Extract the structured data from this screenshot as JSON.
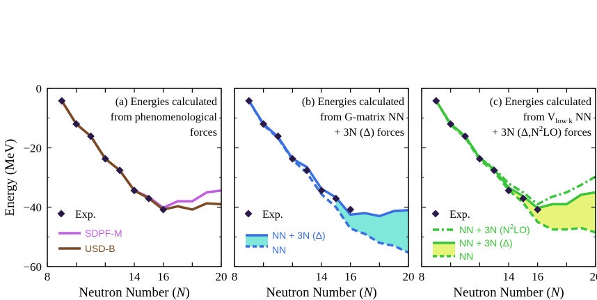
{
  "figure": {
    "ylabel": "Energy (MeV)",
    "xlabel": "Neutron Number (",
    "xlabel_var": "N",
    "xlabel_end": ")"
  },
  "chart_data": [
    {
      "type": "line",
      "panel": "a",
      "title_lines": [
        "(a)  Energies calculated",
        "from phenomenological",
        "forces"
      ],
      "xlim": [
        8,
        20
      ],
      "ylim": [
        -60,
        0
      ],
      "xticks": [
        8,
        14,
        16,
        20
      ],
      "yticks": [
        0,
        -20,
        -40,
        -60
      ],
      "experiment": {
        "name": "Exp.",
        "x": [
          9,
          10,
          11,
          12,
          13,
          14,
          15,
          16
        ],
        "y": [
          -4.2,
          -12.0,
          -16.1,
          -23.7,
          -27.6,
          -34.4,
          -37.1,
          -40.8
        ]
      },
      "series": [
        {
          "name": "SDPF-M",
          "color": "#c060e0",
          "x": [
            9,
            10,
            11,
            12,
            13,
            14,
            15,
            16,
            17,
            18,
            19,
            20
          ],
          "y": [
            -4.2,
            -12.0,
            -16.1,
            -23.7,
            -27.6,
            -34.4,
            -36.6,
            -40.2,
            -38.0,
            -38.0,
            -35.0,
            -34.4
          ]
        },
        {
          "name": "USD-B",
          "color": "#7a4b22",
          "x": [
            9,
            10,
            11,
            12,
            13,
            14,
            15,
            16,
            17,
            18,
            19,
            20
          ],
          "y": [
            -4.2,
            -12.0,
            -16.1,
            -23.7,
            -27.6,
            -34.4,
            -37.0,
            -40.8,
            -39.7,
            -40.8,
            -38.7,
            -39.0
          ]
        }
      ],
      "legend": "bottom-left"
    },
    {
      "type": "line",
      "panel": "b",
      "title_lines": [
        "(b)  Energies calculated",
        "from G-matrix NN",
        "+ 3N (Δ) forces"
      ],
      "xlim": [
        8,
        20
      ],
      "ylim": [
        -60,
        0
      ],
      "xticks": [
        8,
        14,
        16,
        20
      ],
      "yticks": [
        0,
        -20,
        -40,
        -60
      ],
      "experiment": {
        "name": "Exp.",
        "x": [
          9,
          10,
          11,
          12,
          13,
          14,
          15,
          16
        ],
        "y": [
          -4.2,
          -12.0,
          -16.1,
          -23.7,
          -27.6,
          -34.4,
          -37.1,
          -40.8
        ]
      },
      "series": [
        {
          "name": "NN + 3N (Δ)",
          "color": "#3a6fe0",
          "style": "solid",
          "x": [
            9,
            10,
            11,
            12,
            13,
            14,
            15,
            16,
            17,
            18,
            19,
            20
          ],
          "y": [
            -4.2,
            -12.0,
            -16.3,
            -23.7,
            -26.5,
            -33.8,
            -36.7,
            -42.5,
            -42.0,
            -43.0,
            -41.3,
            -41.0
          ]
        },
        {
          "name": "NN",
          "color": "#3a6fe0",
          "style": "dashed",
          "x": [
            9,
            10,
            11,
            12,
            13,
            14,
            15,
            16,
            17,
            18,
            19,
            20
          ],
          "y": [
            -4.2,
            -12.3,
            -16.7,
            -24.0,
            -28.5,
            -35.6,
            -40.0,
            -47.2,
            -49.0,
            -52.0,
            -53.0,
            -55.3
          ]
        }
      ],
      "band": {
        "color": "#7fe8da",
        "from_x": 15
      },
      "legend": "bottom-left"
    },
    {
      "type": "line",
      "panel": "c",
      "title_lines": [
        "(c)  Energies calculated",
        "from  V",
        "low k",
        " NN",
        "+ 3N (Δ,N",
        "2",
        "LO) forces"
      ],
      "xlim": [
        8,
        20
      ],
      "ylim": [
        -60,
        0
      ],
      "xticks": [
        8,
        14,
        16,
        20
      ],
      "yticks": [
        0,
        -20,
        -40,
        -60
      ],
      "experiment": {
        "name": "Exp.",
        "x": [
          9,
          10,
          11,
          12,
          13,
          14,
          15,
          16
        ],
        "y": [
          -4.2,
          -12.0,
          -16.1,
          -23.7,
          -27.6,
          -34.4,
          -37.1,
          -40.8
        ]
      },
      "series": [
        {
          "name": "NN + 3N (N",
          "name_sup": "2",
          "name_end": "LO)",
          "color": "#3cc43c",
          "style": "dashdot",
          "x": [
            9,
            10,
            11,
            12,
            13,
            14,
            15,
            16,
            17,
            18,
            19,
            20
          ],
          "y": [
            -4.2,
            -12.0,
            -16.0,
            -23.4,
            -26.9,
            -32.0,
            -35.0,
            -39.0,
            -36.5,
            -35.0,
            -32.5,
            -29.7
          ]
        },
        {
          "name": "NN + 3N (Δ)",
          "color": "#3cc43c",
          "style": "solid",
          "x": [
            9,
            10,
            11,
            12,
            13,
            14,
            15,
            16,
            17,
            18,
            19,
            20
          ],
          "y": [
            -4.2,
            -12.0,
            -16.1,
            -23.5,
            -27.3,
            -33.4,
            -36.3,
            -40.3,
            -39.0,
            -39.0,
            -35.8,
            -35.0
          ]
        },
        {
          "name": "NN",
          "color": "#3cc43c",
          "style": "dashed",
          "x": [
            9,
            10,
            11,
            12,
            13,
            14,
            15,
            16,
            17,
            18,
            19,
            20
          ],
          "y": [
            -4.2,
            -12.3,
            -16.5,
            -24.0,
            -28.0,
            -34.2,
            -38.5,
            -45.0,
            -47.5,
            -47.5,
            -47.0,
            -48.5
          ]
        }
      ],
      "band": {
        "color": "#e6f57a",
        "from_x": 14
      },
      "legend": "bottom-left"
    }
  ]
}
